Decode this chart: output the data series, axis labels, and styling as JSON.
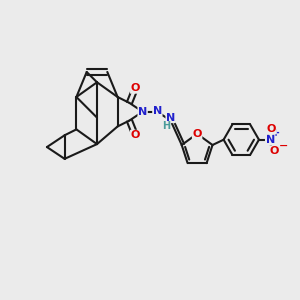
{
  "bg_color": "#ebebeb",
  "bond_color": "#1a1a1a",
  "nitrogen_color": "#2020cc",
  "oxygen_color": "#dd0000",
  "h_color": "#4a9a9a",
  "line_width": 1.5,
  "figsize": [
    3.0,
    3.0
  ],
  "dpi": 100,
  "xlim": [
    0,
    10
  ],
  "ylim": [
    0,
    10
  ]
}
